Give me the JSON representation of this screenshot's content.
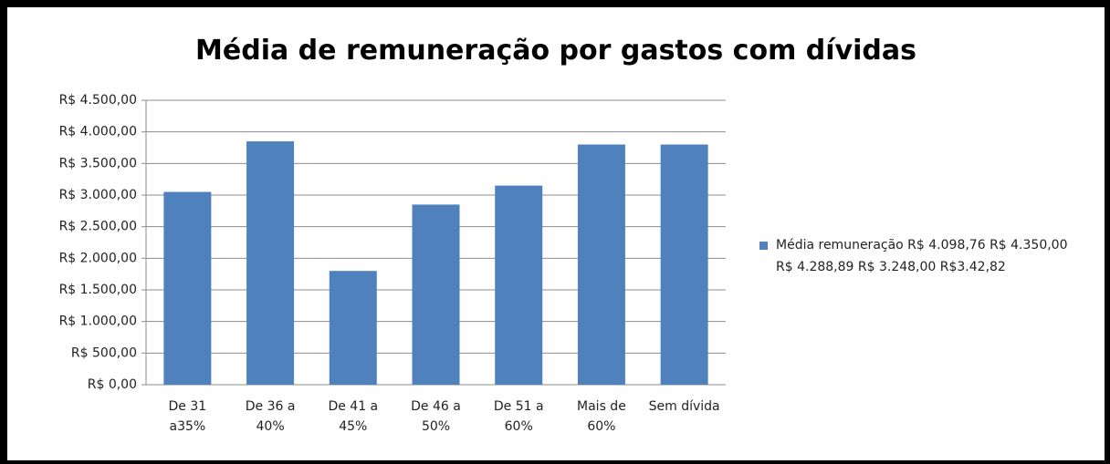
{
  "chart_data": {
    "type": "bar",
    "title": "Média de remuneração por gastos com dívidas",
    "categories": [
      "De 31 a35%",
      "De 36 a 40%",
      "De 41 a 45%",
      "De 46 a 50%",
      "De 51 a 60%",
      "Mais de 60%",
      "Sem dívida"
    ],
    "series": [
      {
        "name": "Média remuneração R$ 4.098,76 R$ 4.350,00 R$ 4.288,89 R$ 3.248,00 R$3.42,82",
        "color": "#4f81bd",
        "values": [
          3050,
          3850,
          1800,
          2850,
          3150,
          3800,
          3800
        ]
      }
    ],
    "ylim": [
      0,
      4500
    ],
    "yticks": [
      {
        "value": 0,
        "label": "R$ 0,00"
      },
      {
        "value": 500,
        "label": "R$ 500,00"
      },
      {
        "value": 1000,
        "label": "R$ 1.000,00"
      },
      {
        "value": 1500,
        "label": "R$ 1.500,00"
      },
      {
        "value": 2000,
        "label": "R$ 2.000,00"
      },
      {
        "value": 2500,
        "label": "R$ 2.500,00"
      },
      {
        "value": 3000,
        "label": "R$ 3.000,00"
      },
      {
        "value": 3500,
        "label": "R$ 3.500,00"
      },
      {
        "value": 4000,
        "label": "R$ 4.000,00"
      },
      {
        "value": 4500,
        "label": "R$ 4.500,00"
      }
    ],
    "grid": true,
    "legend": "right"
  }
}
